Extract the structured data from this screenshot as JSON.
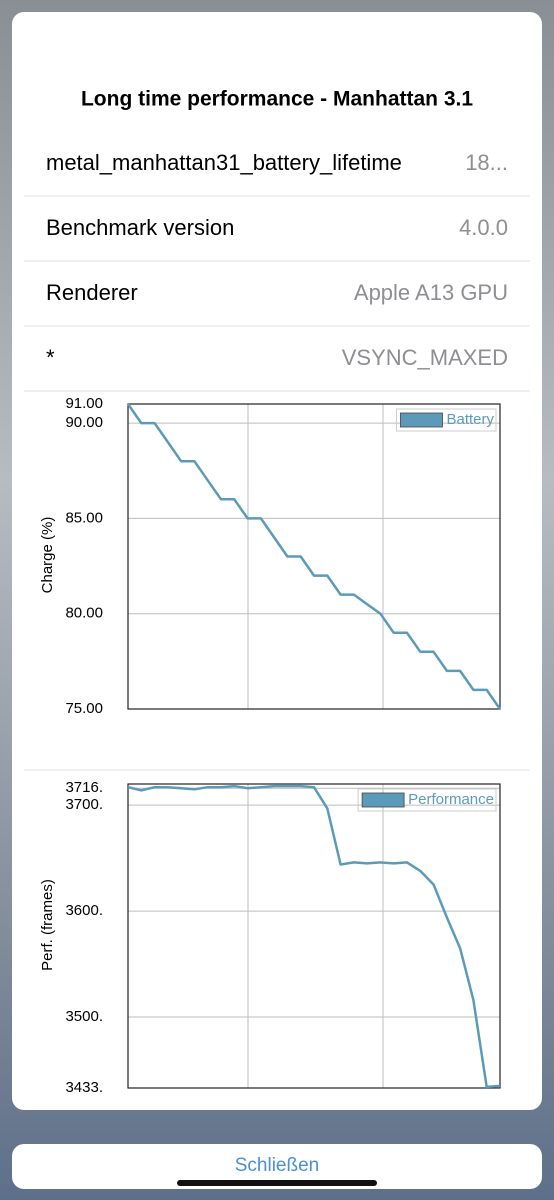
{
  "title": "Long time performance - Manhattan 3.1",
  "rows": [
    {
      "label": "metal_manhattan31_battery_lifetime",
      "value": "18..."
    },
    {
      "label": "Benchmark version",
      "value": "4.0.0"
    },
    {
      "label": "Renderer",
      "value": "Apple A13 GPU"
    },
    {
      "label": "*",
      "value": "VSYNC_MAXED"
    }
  ],
  "chart_data": [
    {
      "type": "line",
      "y_label": "Charge (%)",
      "legend": "upper right",
      "grid": true,
      "series": [
        {
          "name": "Battery",
          "color": "#5b9bb9",
          "values": [
            91,
            90,
            90,
            89,
            88,
            88,
            87,
            86,
            86,
            85,
            85,
            84,
            83,
            83,
            82,
            82,
            81,
            81,
            80.5,
            80,
            79,
            79,
            78,
            78,
            77,
            77,
            76,
            76,
            75
          ]
        }
      ],
      "ylim": [
        75,
        91
      ],
      "yticks": [
        {
          "value": 91,
          "label": "91.00"
        },
        {
          "value": 90,
          "label": "90.00"
        },
        {
          "value": 85,
          "label": "85.00"
        },
        {
          "value": 80,
          "label": "80.00"
        },
        {
          "value": 75,
          "label": "75.00"
        }
      ]
    },
    {
      "type": "line",
      "y_label": "Perf. (frames)",
      "legend": "upper right",
      "grid": true,
      "series": [
        {
          "name": "Performance",
          "color": "#5b9bb9",
          "values": [
            3717,
            3714,
            3717,
            3717,
            3716,
            3715,
            3717,
            3717,
            3718,
            3716,
            3717,
            3718,
            3718,
            3718,
            3717,
            3697,
            3644,
            3646,
            3645,
            3646,
            3645,
            3646,
            3638,
            3625,
            3594,
            3565,
            3516,
            3434,
            3435
          ]
        }
      ],
      "ylim": [
        3433,
        3720
      ],
      "yticks": [
        {
          "value": 3716,
          "label": "3716."
        },
        {
          "value": 3700,
          "label": "3700."
        },
        {
          "value": 3600,
          "label": "3600."
        },
        {
          "value": 3500,
          "label": "3500."
        },
        {
          "value": 3433,
          "label": "3433."
        }
      ]
    }
  ],
  "close_button": "Schließen"
}
